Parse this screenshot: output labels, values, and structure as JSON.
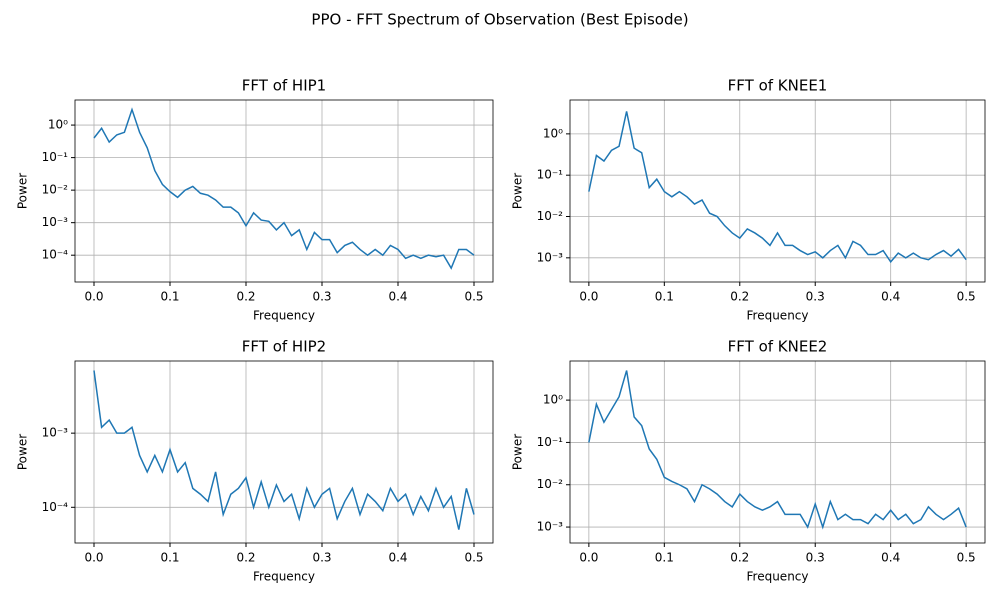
{
  "title": "PPO - FFT Spectrum of Observation (Best Episode)",
  "chart_data": [
    {
      "type": "line",
      "title": "FFT of HIP1",
      "xlabel": "Frequency",
      "ylabel": "Power",
      "yscale": "log",
      "grid": true,
      "color": "#1f77b4",
      "x": [
        0,
        0.01,
        0.02,
        0.03,
        0.04,
        0.05,
        0.06,
        0.07,
        0.08,
        0.09,
        0.1,
        0.11,
        0.12,
        0.13,
        0.14,
        0.15,
        0.16,
        0.17,
        0.18,
        0.19,
        0.2,
        0.21,
        0.22,
        0.23,
        0.24,
        0.25,
        0.26,
        0.27,
        0.28,
        0.29,
        0.3,
        0.31,
        0.32,
        0.33,
        0.34,
        0.35,
        0.36,
        0.37,
        0.38,
        0.39,
        0.4,
        0.41,
        0.42,
        0.43,
        0.44,
        0.45,
        0.46,
        0.47,
        0.48,
        0.49,
        0.5
      ],
      "values": [
        0.4,
        0.8,
        0.3,
        0.5,
        0.6,
        3,
        0.6,
        0.2,
        0.04,
        0.015,
        0.009,
        0.006,
        0.01,
        0.013,
        0.008,
        0.007,
        0.005,
        0.003,
        0.003,
        0.002,
        0.0008,
        0.002,
        0.0012,
        0.0011,
        0.0006,
        0.001,
        0.0004,
        0.0006,
        0.00015,
        0.0005,
        0.0003,
        0.0003,
        0.00012,
        0.0002,
        0.00025,
        0.00015,
        0.0001,
        0.00015,
        0.0001,
        0.0002,
        0.00015,
        8e-05,
        0.0001,
        8e-05,
        0.0001,
        9e-05,
        0.0001,
        4e-05,
        0.00015,
        0.00015,
        0.0001
      ],
      "xlim": [
        -0.025,
        0.525
      ],
      "xticks": [
        {
          "value": 0,
          "label": "0.0"
        },
        0.1,
        0.2,
        0.3,
        0.4,
        0.5
      ],
      "ylim": [
        1.5e-05,
        5.9
      ],
      "yticks": [
        {
          "value": 0.0001,
          "label": "10⁻⁴"
        },
        {
          "value": 0.001,
          "label": "10⁻³"
        },
        {
          "value": 0.01,
          "label": "10⁻²"
        },
        {
          "value": 0.1,
          "label": "10⁻¹"
        },
        {
          "value": 1,
          "label": "10⁰"
        }
      ]
    },
    {
      "type": "line",
      "title": "FFT of KNEE1",
      "xlabel": "Frequency",
      "ylabel": "Power",
      "yscale": "log",
      "grid": true,
      "color": "#1f77b4",
      "x": [
        0,
        0.01,
        0.02,
        0.03,
        0.04,
        0.05,
        0.06,
        0.07,
        0.08,
        0.09,
        0.1,
        0.11,
        0.12,
        0.13,
        0.14,
        0.15,
        0.16,
        0.17,
        0.18,
        0.19,
        0.2,
        0.21,
        0.22,
        0.23,
        0.24,
        0.25,
        0.26,
        0.27,
        0.28,
        0.29,
        0.3,
        0.31,
        0.32,
        0.33,
        0.34,
        0.35,
        0.36,
        0.37,
        0.38,
        0.39,
        0.4,
        0.41,
        0.42,
        0.43,
        0.44,
        0.45,
        0.46,
        0.47,
        0.48,
        0.49,
        0.5
      ],
      "values": [
        0.04,
        0.3,
        0.22,
        0.4,
        0.5,
        3.5,
        0.45,
        0.35,
        0.05,
        0.08,
        0.04,
        0.03,
        0.04,
        0.03,
        0.02,
        0.025,
        0.012,
        0.01,
        0.006,
        0.004,
        0.003,
        0.005,
        0.004,
        0.003,
        0.002,
        0.004,
        0.002,
        0.002,
        0.0015,
        0.0012,
        0.0014,
        0.001,
        0.0015,
        0.002,
        0.001,
        0.0025,
        0.002,
        0.0012,
        0.0012,
        0.0015,
        0.0008,
        0.0013,
        0.001,
        0.0013,
        0.001,
        0.0009,
        0.0012,
        0.0015,
        0.0011,
        0.0016,
        0.0009
      ],
      "xlim": [
        -0.025,
        0.525
      ],
      "xticks": [
        {
          "value": 0,
          "label": "0.0"
        },
        0.1,
        0.2,
        0.3,
        0.4,
        0.5
      ],
      "ylim": [
        0.00026,
        6.6
      ],
      "yticks": [
        {
          "value": 0.001,
          "label": "10⁻³"
        },
        {
          "value": 0.01,
          "label": "10⁻²"
        },
        {
          "value": 0.1,
          "label": "10⁻¹"
        },
        {
          "value": 1,
          "label": "10⁰"
        }
      ]
    },
    {
      "type": "line",
      "title": "FFT of HIP2",
      "xlabel": "Frequency",
      "ylabel": "Power",
      "yscale": "log",
      "grid": true,
      "color": "#1f77b4",
      "x": [
        0,
        0.01,
        0.02,
        0.03,
        0.04,
        0.05,
        0.06,
        0.07,
        0.08,
        0.09,
        0.1,
        0.11,
        0.12,
        0.13,
        0.14,
        0.15,
        0.16,
        0.17,
        0.18,
        0.19,
        0.2,
        0.21,
        0.22,
        0.23,
        0.24,
        0.25,
        0.26,
        0.27,
        0.28,
        0.29,
        0.3,
        0.31,
        0.32,
        0.33,
        0.34,
        0.35,
        0.36,
        0.37,
        0.38,
        0.39,
        0.4,
        0.41,
        0.42,
        0.43,
        0.44,
        0.45,
        0.46,
        0.47,
        0.48,
        0.49,
        0.5
      ],
      "values": [
        0.007,
        0.0012,
        0.0015,
        0.001,
        0.001,
        0.0012,
        0.0005,
        0.0003,
        0.0005,
        0.0003,
        0.0006,
        0.0003,
        0.0004,
        0.00018,
        0.00015,
        0.00012,
        0.0003,
        8e-05,
        0.00015,
        0.00018,
        0.00025,
        0.0001,
        0.00022,
        0.0001,
        0.0002,
        0.00012,
        0.00015,
        7e-05,
        0.00018,
        0.0001,
        0.00015,
        0.00018,
        7e-05,
        0.00012,
        0.00018,
        8e-05,
        0.00015,
        0.00012,
        9e-05,
        0.00018,
        0.00012,
        0.00015,
        8e-05,
        0.00014,
        9e-05,
        0.00018,
        0.0001,
        0.00014,
        5e-05,
        0.00018,
        8e-05
      ],
      "xlim": [
        -0.025,
        0.525
      ],
      "xticks": [
        {
          "value": 0,
          "label": "0.0"
        },
        0.1,
        0.2,
        0.3,
        0.4,
        0.5
      ],
      "ylim": [
        3.3e-05,
        0.0094
      ],
      "yticks": [
        {
          "value": 0.0001,
          "label": "10⁻⁴"
        },
        {
          "value": 0.001,
          "label": "10⁻³"
        }
      ]
    },
    {
      "type": "line",
      "title": "FFT of KNEE2",
      "xlabel": "Frequency",
      "ylabel": "Power",
      "yscale": "log",
      "grid": true,
      "color": "#1f77b4",
      "x": [
        0,
        0.01,
        0.02,
        0.03,
        0.04,
        0.05,
        0.06,
        0.07,
        0.08,
        0.09,
        0.1,
        0.11,
        0.12,
        0.13,
        0.14,
        0.15,
        0.16,
        0.17,
        0.18,
        0.19,
        0.2,
        0.21,
        0.22,
        0.23,
        0.24,
        0.25,
        0.26,
        0.27,
        0.28,
        0.29,
        0.3,
        0.31,
        0.32,
        0.33,
        0.34,
        0.35,
        0.36,
        0.37,
        0.38,
        0.39,
        0.4,
        0.41,
        0.42,
        0.43,
        0.44,
        0.45,
        0.46,
        0.47,
        0.48,
        0.49,
        0.5
      ],
      "values": [
        0.1,
        0.8,
        0.3,
        0.6,
        1.2,
        5,
        0.4,
        0.25,
        0.07,
        0.04,
        0.015,
        0.012,
        0.01,
        0.008,
        0.004,
        0.01,
        0.008,
        0.006,
        0.004,
        0.003,
        0.006,
        0.004,
        0.003,
        0.0025,
        0.003,
        0.004,
        0.002,
        0.002,
        0.002,
        0.001,
        0.0035,
        0.001,
        0.004,
        0.0015,
        0.002,
        0.0015,
        0.0015,
        0.0012,
        0.002,
        0.0015,
        0.0025,
        0.0015,
        0.002,
        0.0012,
        0.0015,
        0.003,
        0.002,
        0.0015,
        0.002,
        0.0028,
        0.001
      ],
      "xlim": [
        -0.025,
        0.525
      ],
      "xticks": [
        {
          "value": 0,
          "label": "0.0"
        },
        0.1,
        0.2,
        0.3,
        0.4,
        0.5
      ],
      "ylim": [
        0.00042,
        8.4
      ],
      "yticks": [
        {
          "value": 0.001,
          "label": "10⁻³"
        },
        {
          "value": 0.01,
          "label": "10⁻²"
        },
        {
          "value": 0.1,
          "label": "10⁻¹"
        },
        {
          "value": 1,
          "label": "10⁰"
        }
      ]
    }
  ]
}
